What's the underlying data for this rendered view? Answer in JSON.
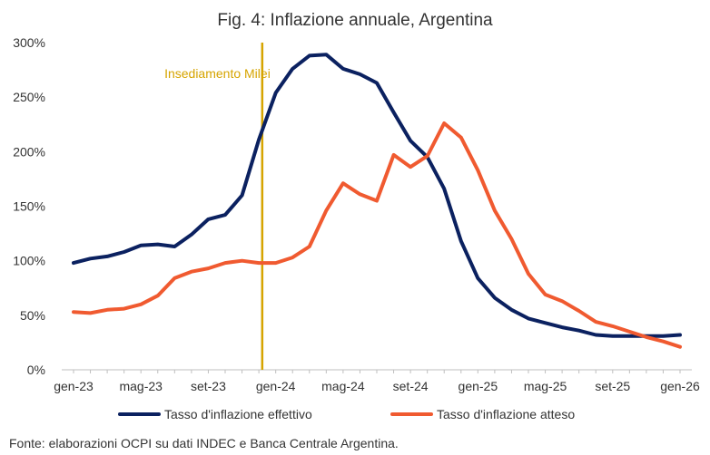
{
  "chart_data": {
    "type": "line",
    "title": "Fig. 4: Inflazione annuale, Argentina",
    "xlabel": "",
    "ylabel": "",
    "ylim": [
      0,
      300
    ],
    "y_ticks": [
      0,
      50,
      100,
      150,
      200,
      250,
      300
    ],
    "y_tick_labels": [
      "0%",
      "50%",
      "100%",
      "150%",
      "200%",
      "250%",
      "300%"
    ],
    "x_tick_labels": [
      "gen-23",
      "mag-23",
      "set-23",
      "gen-24",
      "mag-24",
      "set-24",
      "gen-25",
      "mag-25",
      "set-25",
      "gen-26"
    ],
    "x_tick_positions": [
      0,
      4,
      8,
      12,
      16,
      20,
      24,
      28,
      32,
      36
    ],
    "x_range": [
      -0.7,
      36.7
    ],
    "grid": false,
    "legend": "bottom",
    "series": [
      {
        "name": "Tasso d'inflazione effettivo",
        "color": "#0b2160",
        "x": [
          0,
          1,
          2,
          3,
          4,
          5,
          6,
          7,
          8,
          9,
          10,
          11,
          12,
          13,
          14,
          15,
          16,
          17,
          18,
          19,
          20,
          21,
          22,
          23,
          24,
          25,
          26,
          27,
          28,
          29,
          30,
          31,
          32,
          33,
          34,
          35,
          36
        ],
        "values": [
          98,
          102,
          104,
          108,
          114,
          115,
          113,
          124,
          138,
          142,
          160,
          211,
          254,
          276,
          288,
          289,
          276,
          271,
          263,
          236,
          210,
          195,
          166,
          118,
          84,
          66,
          55,
          47,
          43,
          39,
          36,
          32,
          31,
          31,
          31,
          31,
          32
        ]
      },
      {
        "name": "Tasso d'inflazione atteso",
        "color": "#f05a30",
        "x": [
          0,
          1,
          2,
          3,
          4,
          5,
          6,
          7,
          8,
          9,
          10,
          11,
          12,
          13,
          14,
          15,
          16,
          17,
          18,
          19,
          20,
          21,
          22,
          23,
          24,
          25,
          26,
          27,
          28,
          29,
          30,
          31,
          32,
          33,
          34,
          35,
          36
        ],
        "values": [
          53,
          52,
          55,
          56,
          60,
          68,
          84,
          90,
          93,
          98,
          100,
          98,
          98,
          103,
          113,
          146,
          171,
          161,
          155,
          197,
          186,
          196,
          226,
          213,
          183,
          146,
          120,
          88,
          69,
          63,
          54,
          44,
          40,
          35,
          30,
          26,
          21
        ]
      }
    ],
    "annotations": [
      {
        "label": "Insediamento Milei",
        "x": 11.2,
        "color": "#d6a400"
      }
    ]
  },
  "footer": {
    "source": "Fonte: elaborazioni OCPI su dati INDEC e Banca Centrale Argentina."
  }
}
